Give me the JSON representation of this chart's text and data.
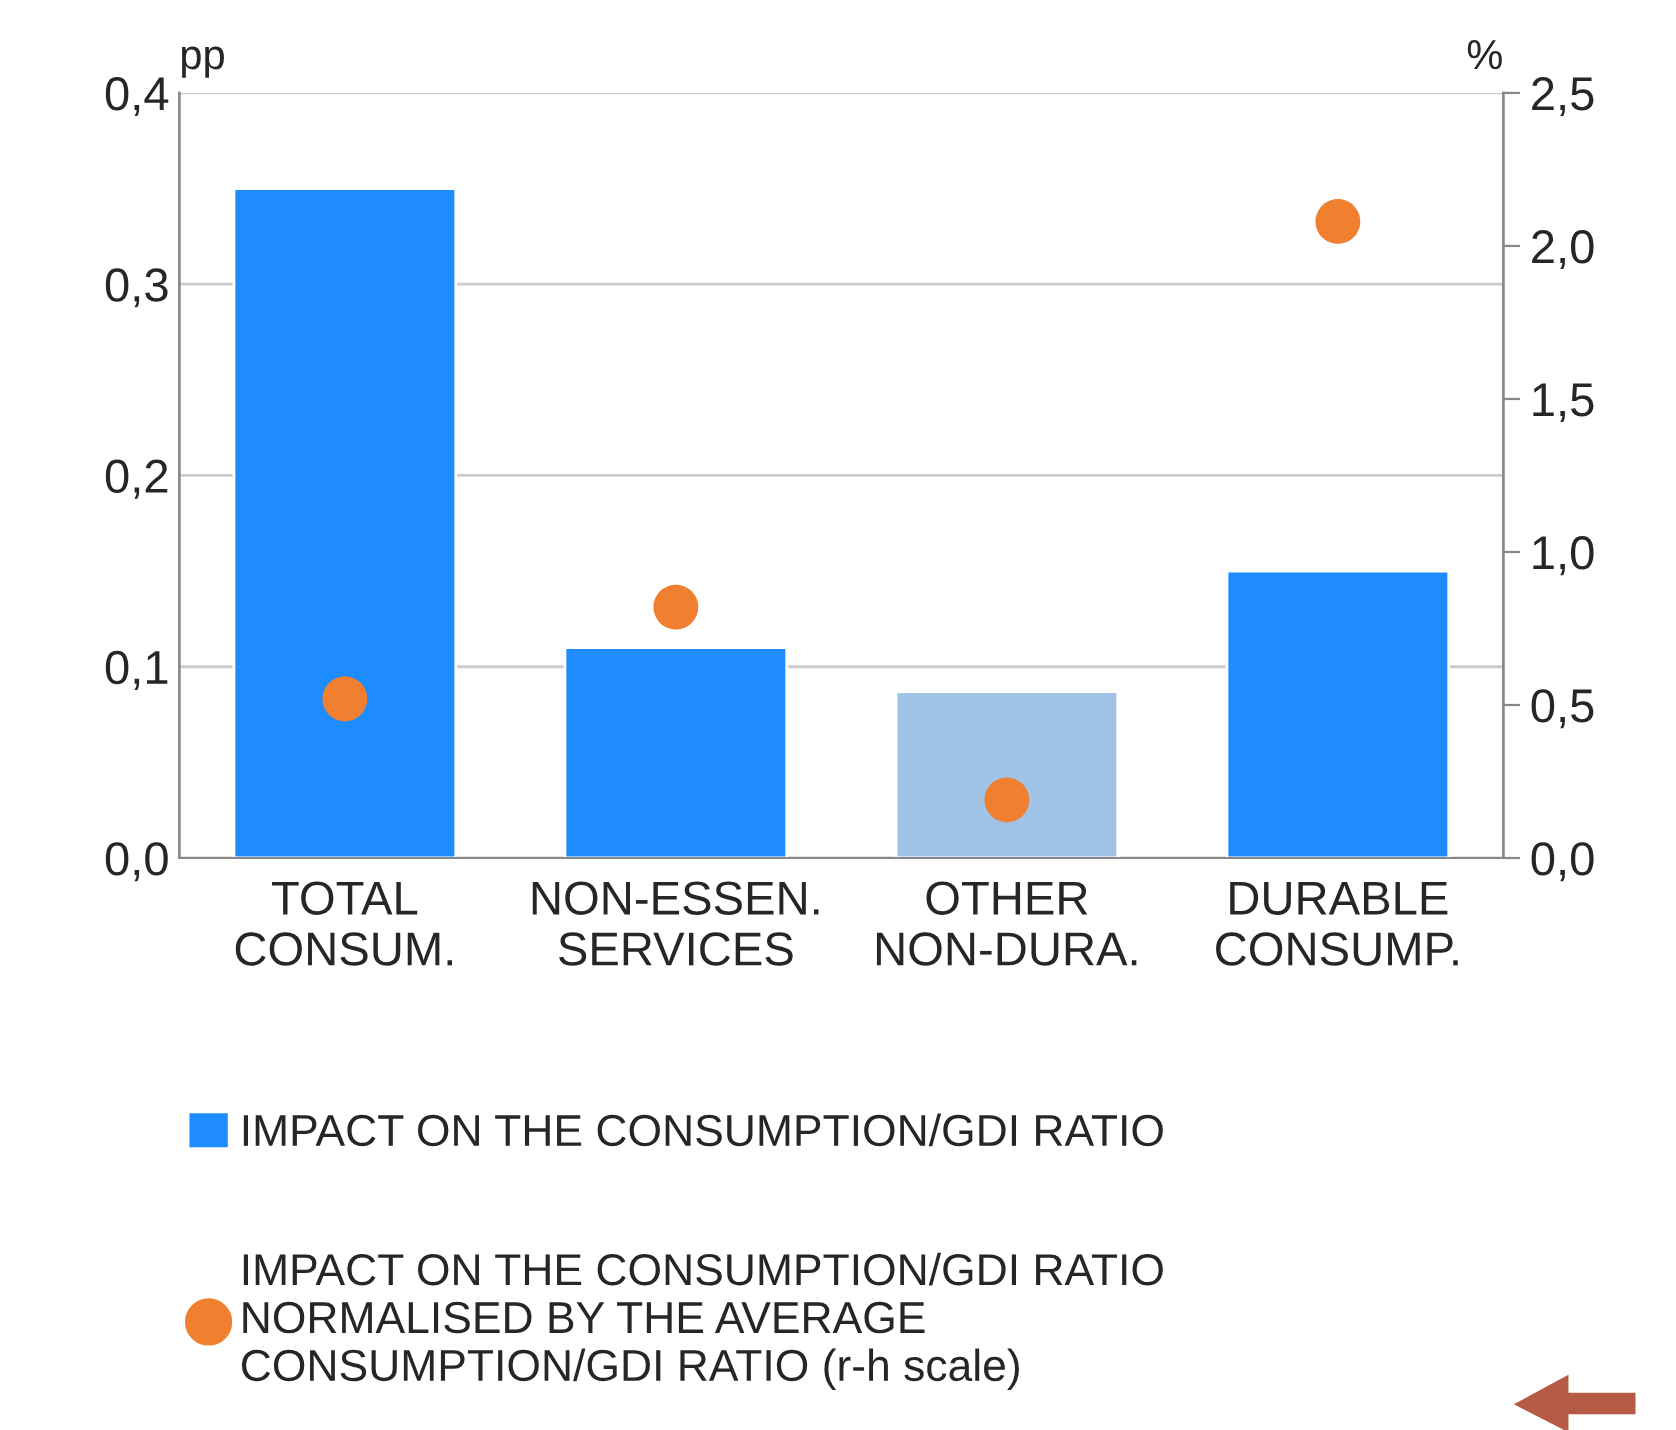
{
  "chart_data": {
    "type": "bar",
    "categories": [
      "TOTAL\nCONSUM.",
      "NON-ESSEN.\nSERVICES",
      "OTHER\nNON-DURA.",
      "DURABLE\nCONSUMP."
    ],
    "ylabel": "pp",
    "y2label": "%",
    "series": [
      {
        "name": "IMPACT ON THE CONSUMPTION/GDI RATIO",
        "color": "#1e8cff",
        "colors": [
          "#1e8cff",
          "#1e8cff",
          "#a0c4e8",
          "#1e8cff"
        ],
        "values": [
          0.35,
          0.11,
          0.087,
          0.15
        ]
      },
      {
        "name": "IMPACT ON THE CONSUMPTION/GDI RATIO\nNORMALISED BY THE AVERAGE\nCONSUMPTION/GDI RATIO (r-h scale)",
        "type": "scatter",
        "axis": "y2",
        "color": "#f08030",
        "values": [
          0.52,
          0.82,
          0.19,
          2.08
        ]
      }
    ],
    "ylim": [
      0,
      0.4
    ],
    "yticks": [
      {
        "value": 0,
        "label": "0,0"
      },
      {
        "value": 0.1,
        "label": "0,1"
      },
      {
        "value": 0.2,
        "label": "0,2"
      },
      {
        "value": 0.3,
        "label": "0,3"
      },
      {
        "value": 0.4,
        "label": "0,4"
      }
    ],
    "y2lim": [
      0,
      2.5
    ],
    "y2ticks": [
      {
        "value": 0,
        "label": "0,0"
      },
      {
        "value": 0.5,
        "label": "0,5"
      },
      {
        "value": 1.0,
        "label": "1,0"
      },
      {
        "value": 1.5,
        "label": "1,5"
      },
      {
        "value": 2.0,
        "label": "2,0"
      },
      {
        "value": 2.5,
        "label": "2,5"
      }
    ],
    "grid": "y",
    "legend": "bottom",
    "marker": "circle"
  }
}
